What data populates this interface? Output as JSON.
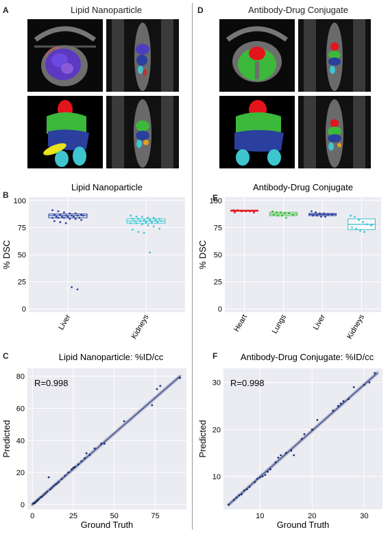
{
  "panels": {
    "A": {
      "letter": "A",
      "title": "Lipid Nanoparticle"
    },
    "D": {
      "letter": "D",
      "title": "Antibody-Drug Conjugate"
    },
    "B": {
      "letter": "B"
    },
    "E": {
      "letter": "E"
    },
    "C": {
      "letter": "C"
    },
    "F": {
      "letter": "F"
    }
  },
  "colors": {
    "heart": "#e4141b",
    "lungs": "#3cb83a",
    "liver": "#2a3f9e",
    "kidneys": "#3ec5cf",
    "plot_bg": "#ebebf2",
    "grid": "#ffffff"
  },
  "chart_data": [
    {
      "id": "B",
      "type": "box",
      "title": "Lipid Nanoparticle",
      "ylabel": "% DSC",
      "xlabel": "",
      "ylim": [
        -3,
        103
      ],
      "yticks": [
        0,
        25,
        50,
        75,
        100
      ],
      "categories": [
        "Liver",
        "Kidneys"
      ],
      "series": [
        {
          "category": "Liver",
          "color": "#2a3f9e",
          "q1": 84,
          "median": 86,
          "q3": 87.5,
          "points": [
            91,
            90,
            89,
            88,
            88,
            87,
            87,
            87,
            86,
            86,
            86,
            86,
            85,
            85,
            85,
            85,
            84,
            84,
            84,
            84,
            83,
            83,
            82,
            81,
            80,
            79,
            20,
            18
          ]
        },
        {
          "category": "Kidneys",
          "color": "#3ec5cf",
          "q1": 79,
          "median": 81,
          "q3": 83,
          "points": [
            86,
            85,
            85,
            84,
            84,
            83,
            83,
            83,
            82,
            82,
            82,
            81,
            81,
            81,
            80,
            80,
            80,
            79,
            79,
            78,
            77,
            76,
            74,
            73,
            71,
            70,
            52
          ]
        }
      ],
      "grid": true
    },
    {
      "id": "E",
      "type": "box",
      "title": "Antibody-Drug Conjugate",
      "ylabel": "% DSC",
      "xlabel": "",
      "ylim": [
        -3,
        103
      ],
      "yticks": [
        0,
        25,
        50,
        75,
        100
      ],
      "categories": [
        "Heart",
        "Lungs",
        "Liver",
        "Kidneys"
      ],
      "series": [
        {
          "category": "Heart",
          "color": "#e4141b",
          "q1": 90,
          "median": 90.5,
          "q3": 91,
          "points": [
            91,
            91,
            90,
            90,
            90,
            89,
            89
          ]
        },
        {
          "category": "Lungs",
          "color": "#3cb83a",
          "q1": 86,
          "median": 87.5,
          "q3": 89,
          "points": [
            90,
            89,
            89,
            88,
            88,
            87,
            87,
            86,
            86,
            84
          ]
        },
        {
          "category": "Liver",
          "color": "#2a3f9e",
          "q1": 86,
          "median": 87,
          "q3": 88,
          "points": [
            90,
            89,
            88,
            88,
            87,
            87,
            86,
            86,
            85,
            85
          ]
        },
        {
          "category": "Kidneys",
          "color": "#3ec5cf",
          "q1": 73,
          "median": 78,
          "q3": 83,
          "points": [
            86,
            85,
            82,
            80,
            78,
            77,
            75,
            74,
            72,
            71
          ]
        }
      ],
      "grid": true
    },
    {
      "id": "C",
      "type": "scatter",
      "title": "Lipid Nanoparticle: %ID/cc",
      "xlabel": "Ground Truth",
      "ylabel": "Predicted",
      "xlim": [
        -3,
        94
      ],
      "ylim": [
        -3,
        85
      ],
      "xticks": [
        0,
        25,
        50,
        75
      ],
      "yticks": [
        0,
        20,
        40,
        60,
        80
      ],
      "annotation": "R=0.998",
      "fit_line": [
        [
          0,
          0
        ],
        [
          90,
          80
        ]
      ],
      "points": [
        [
          0.5,
          0.5
        ],
        [
          1,
          1
        ],
        [
          1.5,
          1
        ],
        [
          2,
          1.5
        ],
        [
          2.5,
          2
        ],
        [
          3,
          2.5
        ],
        [
          3.5,
          3
        ],
        [
          4,
          3.5
        ],
        [
          5,
          4.5
        ],
        [
          6,
          5
        ],
        [
          7,
          6
        ],
        [
          8,
          7
        ],
        [
          9,
          8
        ],
        [
          10,
          17
        ],
        [
          11,
          9.5
        ],
        [
          12,
          10.5
        ],
        [
          13,
          11.5
        ],
        [
          14,
          12.5
        ],
        [
          15,
          13
        ],
        [
          16,
          14
        ],
        [
          18,
          16
        ],
        [
          20,
          18
        ],
        [
          22,
          20
        ],
        [
          24,
          22
        ],
        [
          25,
          23
        ],
        [
          26,
          23.5
        ],
        [
          28,
          25
        ],
        [
          30,
          27
        ],
        [
          32,
          29
        ],
        [
          33,
          32
        ],
        [
          35,
          31
        ],
        [
          38,
          35
        ],
        [
          42,
          38
        ],
        [
          44,
          38
        ],
        [
          56,
          52
        ],
        [
          73,
          62
        ],
        [
          76,
          72
        ],
        [
          78,
          74
        ],
        [
          90,
          79
        ]
      ]
    },
    {
      "id": "F",
      "type": "scatter",
      "title": "Antibody-Drug Conjugate: %ID/cc",
      "xlabel": "Ground Truth",
      "ylabel": "Predicted",
      "xlim": [
        3,
        33.5
      ],
      "ylim": [
        3,
        33
      ],
      "xticks": [
        10,
        20,
        30
      ],
      "yticks": [
        10,
        20,
        30
      ],
      "annotation": "R=0.998",
      "fit_line": [
        [
          4,
          4
        ],
        [
          32.5,
          32
        ]
      ],
      "points": [
        [
          4,
          4
        ],
        [
          5,
          5
        ],
        [
          5.5,
          5.5
        ],
        [
          6,
          6
        ],
        [
          6.5,
          6.2
        ],
        [
          7,
          7
        ],
        [
          7.5,
          7.3
        ],
        [
          8,
          7.8
        ],
        [
          9,
          8.8
        ],
        [
          9.5,
          9.5
        ],
        [
          10,
          9.8
        ],
        [
          10.5,
          10
        ],
        [
          11,
          10.3
        ],
        [
          11.5,
          11
        ],
        [
          12,
          11.5
        ],
        [
          13,
          13
        ],
        [
          13.5,
          14
        ],
        [
          14,
          14.5
        ],
        [
          15,
          15
        ],
        [
          16,
          15.5
        ],
        [
          16.5,
          14.5
        ],
        [
          18,
          18
        ],
        [
          18.5,
          19
        ],
        [
          20,
          20
        ],
        [
          21,
          22
        ],
        [
          24,
          24
        ],
        [
          25,
          25
        ],
        [
          25.5,
          25.5
        ],
        [
          26,
          26
        ],
        [
          27,
          26.5
        ],
        [
          28,
          29
        ],
        [
          30,
          29.5
        ],
        [
          31,
          30
        ],
        [
          32,
          32
        ]
      ]
    }
  ]
}
